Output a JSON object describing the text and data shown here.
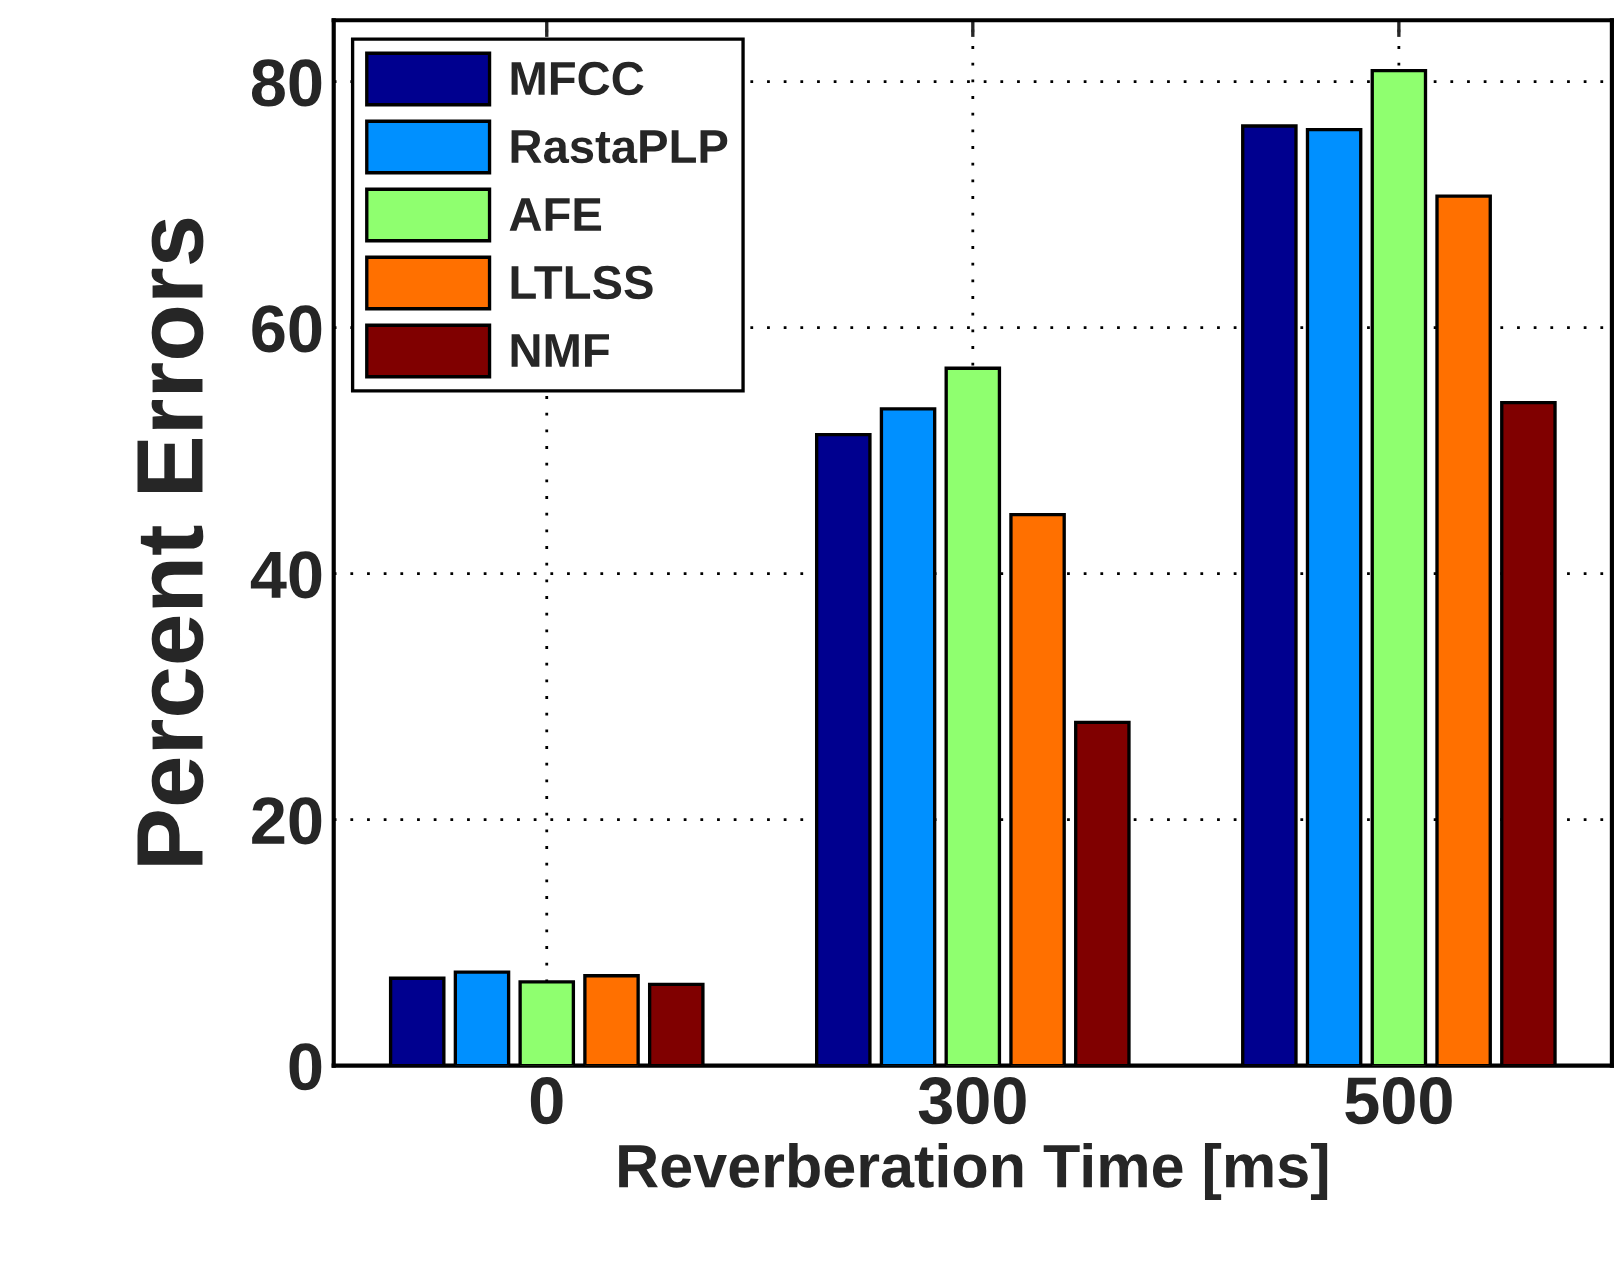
{
  "chart_data": {
    "type": "bar",
    "xlabel": "Reverberation Time [ms]",
    "ylabel": "Percent Errors",
    "categories": [
      "0",
      "300",
      "500"
    ],
    "series": [
      {
        "name": "MFCC",
        "color": "#00008f",
        "values": [
          7.1,
          51.3,
          76.4
        ]
      },
      {
        "name": "RastaPLP",
        "color": "#0090ff",
        "values": [
          7.6,
          53.4,
          76.1
        ]
      },
      {
        "name": "AFE",
        "color": "#8fff6f",
        "values": [
          6.8,
          56.7,
          80.9
        ]
      },
      {
        "name": "LTLSS",
        "color": "#ff7000",
        "values": [
          7.3,
          44.8,
          70.7
        ]
      },
      {
        "name": "NMF",
        "color": "#800000",
        "values": [
          6.6,
          27.9,
          53.9
        ]
      }
    ],
    "ylim": [
      0,
      85
    ],
    "yticks": [
      0,
      20,
      40,
      60,
      80
    ],
    "grid": true,
    "legend": "top left"
  }
}
